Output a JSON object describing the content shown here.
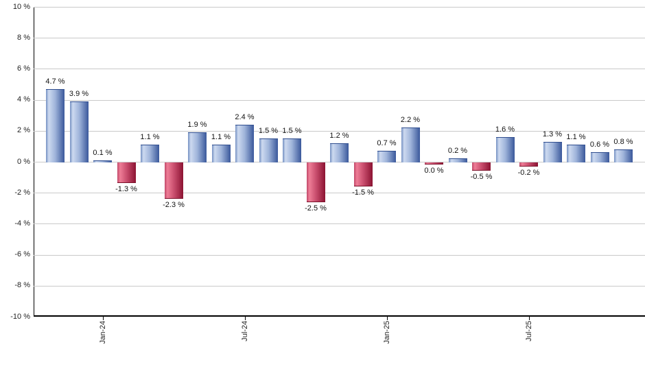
{
  "chart_data": {
    "type": "bar",
    "title": "",
    "xlabel": "",
    "ylabel": "",
    "ylim": [
      -10,
      10
    ],
    "grid": true,
    "legend_position": "none",
    "values": [
      4.7,
      3.9,
      0.1,
      -1.3,
      1.1,
      -2.3,
      1.9,
      1.1,
      2.4,
      1.5,
      1.5,
      -2.5,
      1.2,
      -1.5,
      0.7,
      2.2,
      0.0,
      0.2,
      -0.5,
      1.6,
      -0.2,
      1.3,
      1.1,
      0.6,
      0.8
    ],
    "bar_labels": [
      "4.7 %",
      "3.9 %",
      "0.1 %",
      "-1.3 %",
      "1.1 %",
      "-2.3 %",
      "1.9 %",
      "1.1 %",
      "2.4 %",
      "1.5 %",
      "1.5 %",
      "-2.5 %",
      "1.2 %",
      "-1.5 %",
      "0.7 %",
      "2.2 %",
      "0.0 %",
      "0.2 %",
      "-0.5 %",
      "1.6 %",
      "-0.2 %",
      "1.3 %",
      "1.1 %",
      "0.6 %",
      "0.8 %"
    ],
    "x_ticks": [
      {
        "index": 2,
        "label": "Jan-24"
      },
      {
        "index": 8,
        "label": "Jul-24"
      },
      {
        "index": 14,
        "label": "Jan-25"
      },
      {
        "index": 20,
        "label": "Jul-25"
      }
    ],
    "y_ticks": [
      {
        "value": 10,
        "label": "10 %"
      },
      {
        "value": 8,
        "label": "8 %"
      },
      {
        "value": 6,
        "label": "6 %"
      },
      {
        "value": 4,
        "label": "4 %"
      },
      {
        "value": 2,
        "label": "2 %"
      },
      {
        "value": 0,
        "label": "0 %"
      },
      {
        "value": -2,
        "label": "-2 %"
      },
      {
        "value": -4,
        "label": "-4 %"
      },
      {
        "value": -6,
        "label": "-6 %"
      },
      {
        "value": -8,
        "label": "-8 %"
      },
      {
        "value": -10,
        "label": "-10 %"
      }
    ],
    "colors": {
      "positive_bar_edge": "#7490c2",
      "positive_bar_light": "#cddaf0",
      "positive_bar_mid": "#9fb4da",
      "positive_bar_dark": "#3a589b",
      "negative_bar_edge": "#c1496a",
      "negative_bar_light": "#ee7d96",
      "negative_bar_mid": "#c94e6e",
      "negative_bar_dark": "#8c1332",
      "gridline": "#c9c9c9",
      "axis": "#000000",
      "text": "#1f1f1f"
    }
  }
}
